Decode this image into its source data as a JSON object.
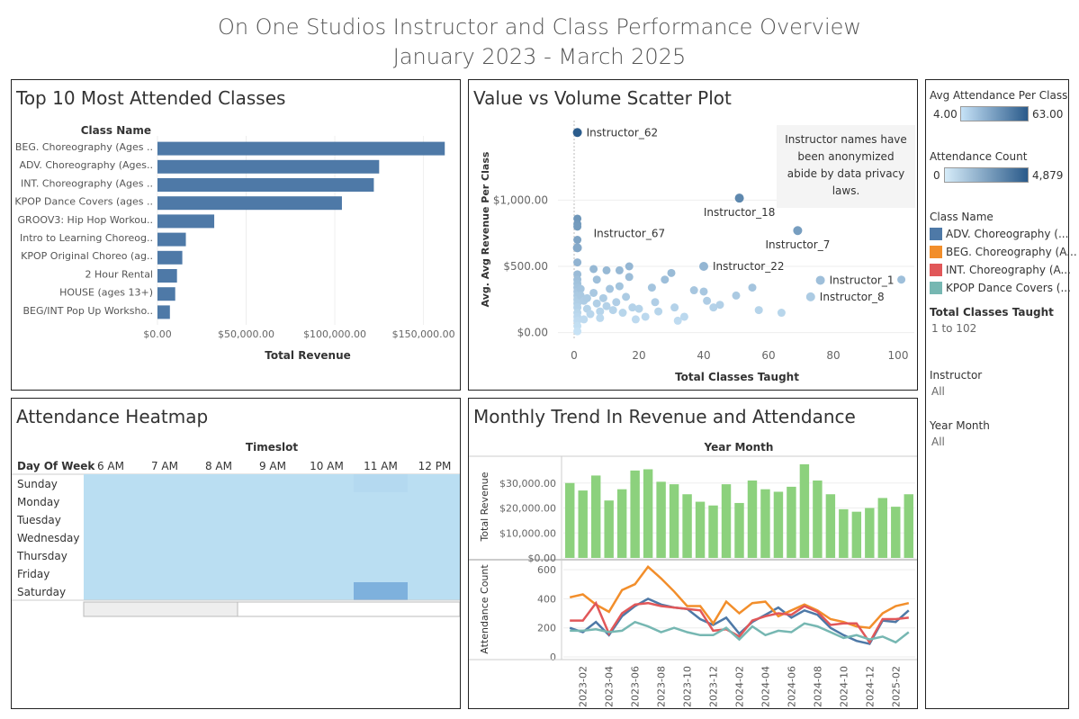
{
  "title": {
    "line1": "On One Studios Instructor and Class Performance Overview",
    "line2": "January 2023 - March 2025"
  },
  "top_classes": {
    "title": "Top 10 Most Attended Classes",
    "header": "Class Name",
    "xlabel": "Total Revenue",
    "ticks": [
      "$0.00",
      "$50,000.00",
      "$100,000.00",
      "$150,000.00"
    ],
    "tick_values": [
      0,
      50000,
      100000,
      150000
    ],
    "xlim": [
      0,
      170000
    ],
    "bar_color": "#4e79a7"
  },
  "scatter": {
    "title": "Value vs Volume Scatter Plot",
    "xlabel": "Total Classes Taught",
    "ylabel": "Avg. Avg Revenue Per Class",
    "xticks": [
      "0",
      "20",
      "40",
      "60",
      "80",
      "100"
    ],
    "xtick_values": [
      0,
      20,
      40,
      60,
      80,
      100
    ],
    "yticks": [
      "$0.00",
      "$500.00",
      "$1,000.00"
    ],
    "ytick_values": [
      0,
      500,
      1000
    ],
    "note_line1": "Instructor names have",
    "note_line2": "been anonymized",
    "note_line3": "abide by data privacy",
    "note_line4": "laws."
  },
  "heatmap": {
    "title": "Attendance Heatmap",
    "timeslot_label": "Timeslot",
    "row_header": "Day Of Week",
    "columns": [
      "6 AM",
      "7 AM",
      "8 AM",
      "9 AM",
      "10 AM",
      "11 AM",
      "12 PM"
    ],
    "rows": [
      "Sunday",
      "Monday",
      "Tuesday",
      "Wednesday",
      "Thursday",
      "Friday",
      "Saturday"
    ]
  },
  "trend": {
    "title": "Monthly Trend In Revenue and Attendance",
    "header": "Year Month",
    "rev_label": "Total Revenue",
    "att_label": "Attendance Count",
    "rev_ticks": [
      "$0.00",
      "$10,000.00",
      "$20,000.00",
      "$30,000.00"
    ],
    "rev_tick_values": [
      0,
      10000,
      20000,
      30000
    ],
    "att_ticks": [
      "0",
      "200",
      "400",
      "600"
    ],
    "att_tick_values": [
      0,
      200,
      400,
      600
    ],
    "month_labels": [
      "2023-02",
      "2023-04",
      "2023-06",
      "2023-08",
      "2023-10",
      "2023-12",
      "2024-02",
      "2024-04",
      "2024-06",
      "2024-08",
      "2024-10",
      "2024-12",
      "2025-02"
    ]
  },
  "sidebar": {
    "avg_att_label": "Avg Attendance Per Class",
    "avg_att_min": "4.00",
    "avg_att_max": "63.00",
    "att_count_label": "Attendance Count",
    "att_count_min": "0",
    "att_count_max": "4,879",
    "class_name_label": "Class Name",
    "class_legend": [
      {
        "label": "ADV. Choreography (...",
        "color": "#4e79a7"
      },
      {
        "label": "BEG. Choreography (A...",
        "color": "#f28e2b"
      },
      {
        "label": "INT. Choreography (A...",
        "color": "#e15759"
      },
      {
        "label": "KPOP Dance Covers (...",
        "color": "#76b7b2"
      }
    ],
    "total_classes_label": "Total Classes Taught",
    "total_classes_value": "1 to 102",
    "instructor_label": "Instructor",
    "instructor_value": "All",
    "year_month_label": "Year Month",
    "year_month_value": "All"
  },
  "chart_data": [
    {
      "type": "bar",
      "title": "Top 10 Most Attended Classes",
      "xlabel": "Total Revenue",
      "categories": [
        "BEG. Choreography (Ages ..",
        "ADV.  Choreography (Ages..",
        "INT. Choreography (Ages ..",
        "KPOP Dance Covers (ages ..",
        "GROOV3: Hip Hop Workou..",
        "Intro to Learning Choreog..",
        "KPOP Original Choreo (ag..",
        "2 Hour Rental",
        "HOUSE (ages 13+)",
        "BEG/INT Pop Up Worksho.."
      ],
      "values": [
        162000,
        125000,
        122000,
        104000,
        32000,
        16000,
        14000,
        11000,
        10000,
        7000
      ],
      "xlim": [
        0,
        170000
      ]
    },
    {
      "type": "scatter",
      "title": "Value vs Volume Scatter Plot",
      "xlabel": "Total Classes Taught",
      "ylabel": "Avg. Avg Revenue Per Class",
      "xlim": [
        -5,
        105
      ],
      "ylim": [
        -50,
        1600
      ],
      "labeled_points": [
        {
          "name": "Instructor_62",
          "x": 1,
          "y": 1510
        },
        {
          "name": "Instructor_18",
          "x": 51,
          "y": 1015
        },
        {
          "name": "Instructor_7",
          "x": 69,
          "y": 770
        },
        {
          "name": "Instructor_67",
          "x": 1,
          "y": 640
        },
        {
          "name": "Instructor_22",
          "x": 40,
          "y": 500
        },
        {
          "name": "Instructor_1",
          "x": 76,
          "y": 395
        },
        {
          "name": "Instructor_8",
          "x": 73,
          "y": 270
        }
      ],
      "points": [
        [
          1,
          860
        ],
        [
          1,
          820
        ],
        [
          1,
          800
        ],
        [
          1,
          700
        ],
        [
          1,
          530
        ],
        [
          1,
          440
        ],
        [
          1,
          400
        ],
        [
          1,
          370
        ],
        [
          1,
          340
        ],
        [
          1,
          310
        ],
        [
          1,
          280
        ],
        [
          1,
          250
        ],
        [
          1,
          220
        ],
        [
          1,
          190
        ],
        [
          1,
          150
        ],
        [
          1,
          120
        ],
        [
          1,
          90
        ],
        [
          1,
          50
        ],
        [
          1,
          10
        ],
        [
          2,
          330
        ],
        [
          2,
          280
        ],
        [
          3,
          240
        ],
        [
          3,
          100
        ],
        [
          4,
          260
        ],
        [
          4,
          180
        ],
        [
          5,
          140
        ],
        [
          6,
          480
        ],
        [
          6,
          300
        ],
        [
          7,
          400
        ],
        [
          7,
          220
        ],
        [
          8,
          160
        ],
        [
          8,
          110
        ],
        [
          9,
          260
        ],
        [
          10,
          470
        ],
        [
          10,
          200
        ],
        [
          11,
          330
        ],
        [
          12,
          170
        ],
        [
          13,
          230
        ],
        [
          14,
          470
        ],
        [
          14,
          350
        ],
        [
          15,
          150
        ],
        [
          16,
          270
        ],
        [
          17,
          500
        ],
        [
          17,
          420
        ],
        [
          18,
          190
        ],
        [
          19,
          100
        ],
        [
          20,
          180
        ],
        [
          22,
          120
        ],
        [
          24,
          340
        ],
        [
          25,
          230
        ],
        [
          26,
          160
        ],
        [
          28,
          400
        ],
        [
          30,
          450
        ],
        [
          31,
          190
        ],
        [
          32,
          90
        ],
        [
          34,
          120
        ],
        [
          37,
          320
        ],
        [
          40,
          310
        ],
        [
          41,
          240
        ],
        [
          43,
          190
        ],
        [
          45,
          210
        ],
        [
          50,
          280
        ],
        [
          55,
          340
        ],
        [
          57,
          170
        ],
        [
          64,
          150
        ],
        [
          101,
          400
        ]
      ]
    },
    {
      "type": "heatmap",
      "title": "Attendance Heatmap",
      "x": [
        "6 AM",
        "7 AM",
        "8 AM",
        "9 AM",
        "10 AM",
        "11 AM",
        "12 PM"
      ],
      "y": [
        "Sunday",
        "Monday",
        "Tuesday",
        "Wednesday",
        "Thursday",
        "Friday",
        "Saturday"
      ],
      "values": [
        [
          0,
          0,
          0,
          0,
          0,
          150,
          0
        ],
        [
          0,
          0,
          0,
          0,
          0,
          0,
          0
        ],
        [
          0,
          0,
          0,
          0,
          0,
          0,
          0
        ],
        [
          0,
          0,
          0,
          0,
          0,
          0,
          0
        ],
        [
          0,
          0,
          0,
          0,
          0,
          0,
          0
        ],
        [
          0,
          0,
          0,
          0,
          0,
          0,
          0
        ],
        [
          0,
          0,
          0,
          0,
          0,
          1400,
          0
        ]
      ]
    },
    {
      "type": "bar",
      "title": "Monthly Trend In Revenue and Attendance",
      "ylabel": "Total Revenue",
      "x": [
        "2023-01",
        "2023-02",
        "2023-03",
        "2023-04",
        "2023-05",
        "2023-06",
        "2023-07",
        "2023-08",
        "2023-09",
        "2023-10",
        "2023-11",
        "2023-12",
        "2024-01",
        "2024-02",
        "2024-03",
        "2024-04",
        "2024-05",
        "2024-06",
        "2024-07",
        "2024-08",
        "2024-09",
        "2024-10",
        "2024-11",
        "2024-12",
        "2025-01",
        "2025-02",
        "2025-03"
      ],
      "values": [
        30000,
        27000,
        33000,
        23000,
        27500,
        35000,
        35500,
        30500,
        29500,
        25500,
        22500,
        21000,
        29500,
        22000,
        31000,
        27500,
        26500,
        28500,
        37500,
        31000,
        25500,
        19500,
        18500,
        20000,
        24000,
        20500,
        25500
      ],
      "ylim": [
        0,
        40000
      ],
      "color": "#8cd17d"
    },
    {
      "type": "line",
      "ylabel": "Attendance Count",
      "x": [
        "2023-01",
        "2023-02",
        "2023-03",
        "2023-04",
        "2023-05",
        "2023-06",
        "2023-07",
        "2023-08",
        "2023-09",
        "2023-10",
        "2023-11",
        "2023-12",
        "2024-01",
        "2024-02",
        "2024-03",
        "2024-04",
        "2024-05",
        "2024-06",
        "2024-07",
        "2024-08",
        "2024-09",
        "2024-10",
        "2024-11",
        "2024-12",
        "2025-01",
        "2025-02",
        "2025-03"
      ],
      "ylim": [
        0,
        650
      ],
      "series": [
        {
          "name": "ADV. Choreography (...",
          "color": "#4e79a7",
          "values": [
            200,
            170,
            240,
            150,
            280,
            350,
            400,
            360,
            340,
            330,
            260,
            220,
            270,
            160,
            240,
            290,
            340,
            270,
            320,
            290,
            200,
            150,
            110,
            90,
            250,
            240,
            320
          ]
        },
        {
          "name": "BEG. Choreography (A...",
          "color": "#f28e2b",
          "values": [
            410,
            430,
            360,
            310,
            460,
            500,
            620,
            540,
            450,
            350,
            350,
            230,
            380,
            300,
            370,
            380,
            280,
            320,
            360,
            320,
            260,
            240,
            210,
            200,
            300,
            350,
            370
          ]
        },
        {
          "name": "INT. Choreography (A...",
          "color": "#e15759",
          "values": [
            250,
            250,
            370,
            160,
            300,
            360,
            370,
            350,
            340,
            330,
            320,
            180,
            190,
            140,
            250,
            280,
            300,
            290,
            350,
            310,
            220,
            230,
            230,
            100,
            260,
            260,
            270
          ]
        },
        {
          "name": "KPOP Dance Covers (...",
          "color": "#76b7b2",
          "values": [
            180,
            180,
            190,
            170,
            180,
            240,
            210,
            170,
            200,
            170,
            150,
            150,
            200,
            120,
            210,
            150,
            180,
            170,
            230,
            210,
            170,
            130,
            150,
            120,
            140,
            100,
            170
          ]
        }
      ]
    }
  ]
}
